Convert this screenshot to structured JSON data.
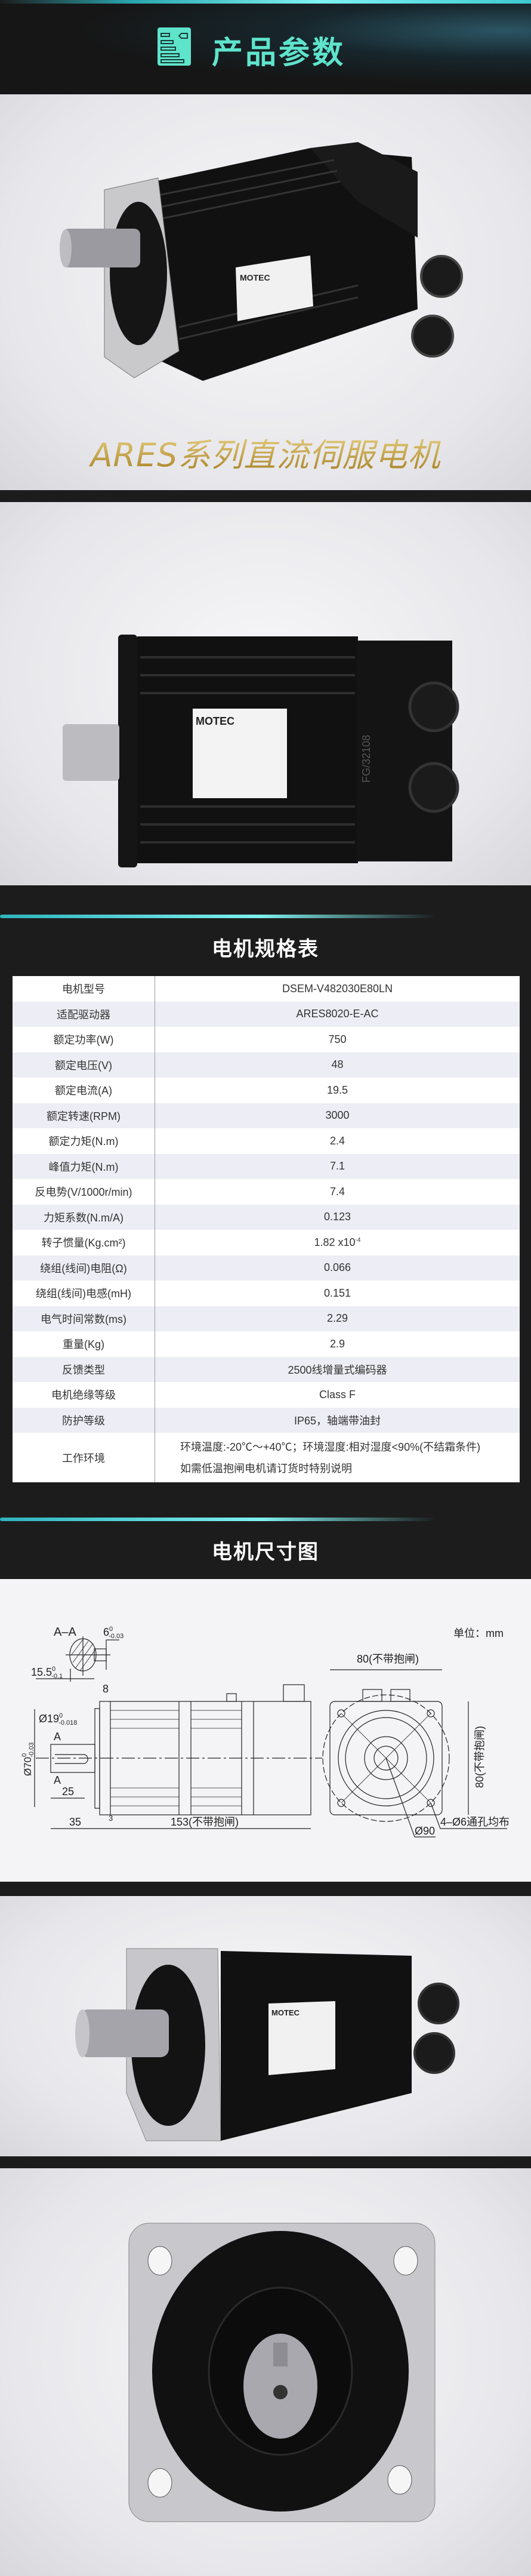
{
  "header": {
    "title": "产品参数",
    "icon": "document-list-icon",
    "accent_color": "#5fe4cc"
  },
  "hero": {
    "caption": "ARES系列直流伺服电机",
    "logo_text": "MOTEC",
    "caption_color": "#c9a640"
  },
  "side_photo": {
    "logo_text": "MOTEC",
    "housing_mark": "FG/32108"
  },
  "spec_table": {
    "title": "电机规格表",
    "rows": [
      {
        "label": "电机型号",
        "value": "DSEM-V482030E80LN"
      },
      {
        "label": "适配驱动器",
        "value": "ARES8020-E-AC"
      },
      {
        "label": "额定功率(W)",
        "value": "750"
      },
      {
        "label": "额定电压(V)",
        "value": "48"
      },
      {
        "label": "额定电流(A)",
        "value": "19.5"
      },
      {
        "label": "额定转速(RPM)",
        "value": "3000"
      },
      {
        "label": "额定力矩(N.m)",
        "value": "2.4"
      },
      {
        "label": "峰值力矩(N.m)",
        "value": "7.1"
      },
      {
        "label": "反电势(V/1000r/min)",
        "value": "7.4"
      },
      {
        "label": "力矩系数(N.m/A)",
        "value": "0.123"
      },
      {
        "label": "转子惯量(Kg.cm²)",
        "value": "1.82 x10",
        "value_exp": "-4"
      },
      {
        "label": "绕组(线间)电阻(Ω)",
        "value": "0.066"
      },
      {
        "label": "绕组(线间)电感(mH)",
        "value": "0.151"
      },
      {
        "label": "电气时间常数(ms)",
        "value": "2.29"
      },
      {
        "label": "重量(Kg)",
        "value": "2.9"
      },
      {
        "label": "反馈类型",
        "value": "2500线增量式编码器"
      },
      {
        "label": "电机绝缘等级",
        "value": "Class F"
      },
      {
        "label": "防护等级",
        "value": "IP65，轴端带油封"
      },
      {
        "label": "工作环境",
        "value": "环境温度:-20℃～+40℃；环境湿度:相对湿度<90%(不结霜条件)　　如需低温抱闸电机请订货时特别说明"
      }
    ]
  },
  "dimensions": {
    "title": "电机尺寸图",
    "unit": "单位：mm",
    "section_label": "A–A",
    "key_width": "6",
    "key_width_tol": [
      "0",
      "-0.03"
    ],
    "key_depth": "15.5",
    "key_depth_tol": [
      "0",
      "-0.1"
    ],
    "flange_thickness": "8",
    "shaft_dia": "Ø19",
    "shaft_dia_tol": [
      "0",
      "-0.018"
    ],
    "spigot_dia": "Ø70",
    "spigot_dia_tol": [
      "0",
      "-0.03"
    ],
    "section_mark": "A",
    "key_length": "25",
    "shaft_length": "35",
    "spigot_length": "3",
    "body_length": "153(不带抱闸)",
    "flange_width": "80(不带抱闸)",
    "flange_height": "80(不带抱闸)",
    "pcd": "Ø90",
    "holes": "4–Ø6通孔均布"
  }
}
